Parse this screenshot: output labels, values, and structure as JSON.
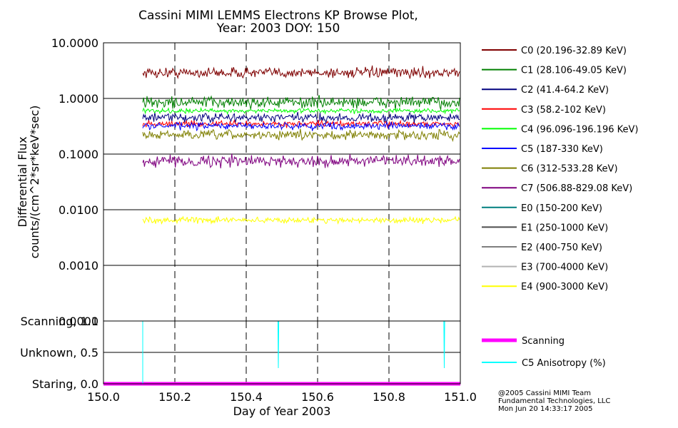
{
  "chart_data": [
    {
      "type": "line",
      "title_line1": "Cassini MIMI LEMMS Electrons KP Browse Plot,",
      "title_line2": "Year: 2003 DOY: 150",
      "ylabel_line1": "Differential Flux",
      "ylabel_line2": "counts/(cm^2*sr*keV*sec)",
      "yscale": "log",
      "ylim": [
        0.0001,
        10
      ],
      "yticks": [
        "10.0000",
        "1.0000",
        "0.1000",
        "0.0100",
        "0.0010",
        "0.0001"
      ],
      "ytick_values": [
        10,
        1,
        0.1,
        0.01,
        0.001,
        0.0001
      ],
      "xlim": [
        150.0,
        151.0
      ],
      "grid": true,
      "data_start_x": 150.11,
      "series": [
        {
          "name": "C0 (20.196-32.89 KeV)",
          "color": "#7f0000",
          "level": 2.9,
          "noise": 0.09
        },
        {
          "name": "C1 (28.106-49.05 KeV)",
          "color": "#007f00",
          "level": 0.85,
          "noise": 0.1
        },
        {
          "name": "C2 (41.4-64.2 KeV)",
          "color": "#00007f",
          "level": 0.45,
          "noise": 0.08
        },
        {
          "name": "C3 (58.2-102 KeV)",
          "color": "#ff0000",
          "level": 0.35,
          "noise": 0.05
        },
        {
          "name": "C4 (96.096-196.196 KeV)",
          "color": "#00ff00",
          "level": 0.6,
          "noise": 0.04
        },
        {
          "name": "C5 (187-330 KeV)",
          "color": "#0000ff",
          "level": 0.32,
          "noise": 0.06
        },
        {
          "name": "C6 (312-533.28 KeV)",
          "color": "#7f7f00",
          "level": 0.22,
          "noise": 0.08
        },
        {
          "name": "C7 (506.88-829.08 KeV)",
          "color": "#7f007f",
          "level": 0.075,
          "noise": 0.1
        },
        {
          "name": "E0 (150-200 KeV)",
          "color": "#007f7f",
          "level": null,
          "noise": 0
        },
        {
          "name": "E1 (250-1000 KeV)",
          "color": "#4d4d4d",
          "level": null,
          "noise": 0
        },
        {
          "name": "E2 (400-750 KeV)",
          "color": "#7f7f7f",
          "level": null,
          "noise": 0
        },
        {
          "name": "E3 (700-4000 KeV)",
          "color": "#b3b3b3",
          "level": null,
          "noise": 0
        },
        {
          "name": "E4 (900-3000 KeV)",
          "color": "#ffff00",
          "level": 0.0065,
          "noise": 0.05
        }
      ]
    },
    {
      "type": "line",
      "xlabel": "Day of Year 2003",
      "xticks": [
        "150.0",
        "150.2",
        "150.4",
        "150.6",
        "150.8",
        "151.0"
      ],
      "xtick_values": [
        150.0,
        150.2,
        150.4,
        150.6,
        150.8,
        151.0
      ],
      "yticks": [
        "Scanning, 1.0",
        "Unknown, 0.5",
        "Staring, 0.0"
      ],
      "ytick_values": [
        1.0,
        0.5,
        0.0
      ],
      "ylim": [
        0,
        1
      ],
      "series": [
        {
          "name": "Scanning",
          "color": "#ff00ff",
          "level": 0.0
        },
        {
          "name": "C5 Anisotropy (%)",
          "color": "#00ffff",
          "level": 1.0,
          "start_x": 150.11,
          "dips": [
            {
              "x": 150.11,
              "y": 0.0
            },
            {
              "x": 150.49,
              "y": 0.25
            },
            {
              "x": 150.955,
              "y": 0.25
            }
          ]
        }
      ]
    }
  ],
  "credit": {
    "line1": "@2005 Cassini MIMI Team",
    "line2": "Fundamental Technologies, LLC",
    "line3": "Mon Jun 20 14:33:17 2005"
  }
}
